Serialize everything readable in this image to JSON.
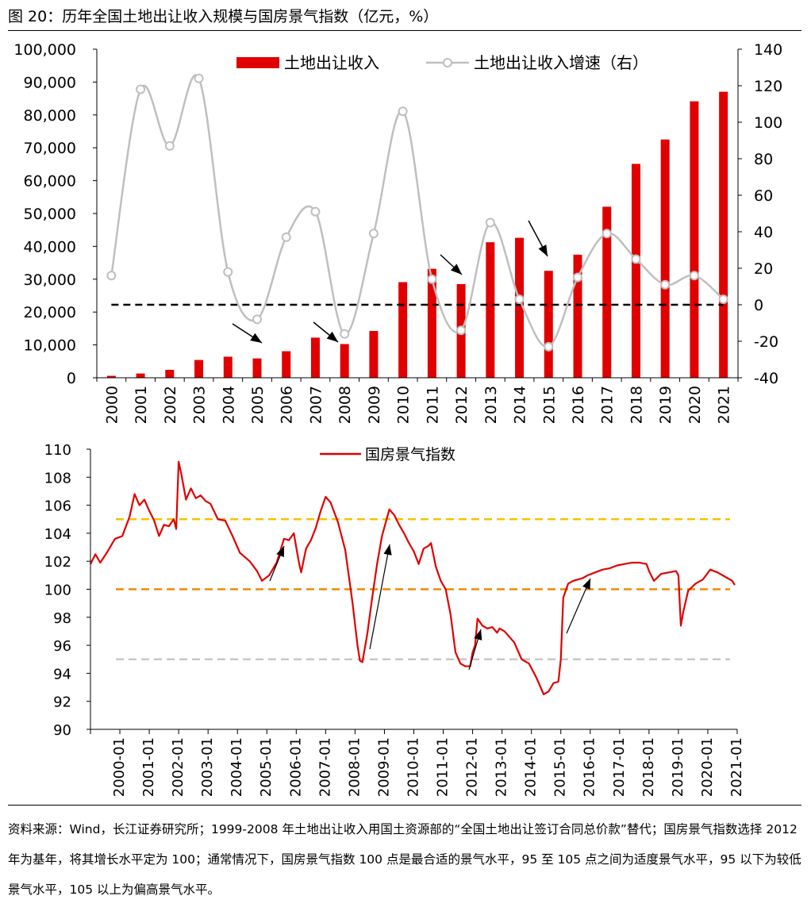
{
  "title": "图 20：历年全国土地出让收入规模与国房景气指数（亿元，%）",
  "source_note": "资料来源：Wind，长江证券研究所；1999-2008 年土地出让收入用国土资源部的“全国土地出让签订合同总价款”替代；国房景气指数选择 2012 年为基年，将其增长水平定为 100；通常情况下，国房景气指数 100 点是最合适的景气水平，95 至 105 点之间为适度景气水平，95 以下为较低景气水平，105 以上为偏高景气水平。",
  "colors": {
    "bar": "#e00000",
    "growth_line": "#bfbfbf",
    "index_line": "#e00000",
    "ref_105": "#f5c400",
    "ref_100": "#f08a00",
    "ref_95": "#c8c8c8"
  },
  "chart_data": [
    {
      "type": "bar",
      "categories": [
        "2000",
        "2001",
        "2002",
        "2003",
        "2004",
        "2005",
        "2006",
        "2007",
        "2008",
        "2009",
        "2010",
        "2011",
        "2012",
        "2013",
        "2014",
        "2015",
        "2016",
        "2017",
        "2018",
        "2019",
        "2020",
        "2021"
      ],
      "series": [
        {
          "name": "土地出让收入",
          "axis": "left",
          "kind": "bar",
          "values": [
            596,
            1296,
            2417,
            5421,
            6412,
            5884,
            8078,
            12217,
            10260,
            14240,
            29110,
            33166,
            28517,
            41250,
            42606,
            32547,
            37457,
            52059,
            65096,
            72517,
            84142,
            87051
          ]
        },
        {
          "name": "土地出让收入增速（右）",
          "axis": "right",
          "kind": "line",
          "values": [
            16,
            118,
            87,
            124,
            18,
            -8,
            37,
            51,
            -16,
            39,
            106,
            14,
            -14,
            45,
            3,
            -23,
            15,
            39,
            25,
            11,
            16,
            3
          ]
        }
      ],
      "ylim": [
        0,
        100000
      ],
      "yticks": [
        "0",
        "10,000",
        "20,000",
        "30,000",
        "40,000",
        "50,000",
        "60,000",
        "70,000",
        "80,000",
        "90,000",
        "100,000"
      ],
      "y2lim": [
        -40,
        140
      ],
      "y2ticks": [
        "-40",
        "-20",
        "0",
        "20",
        "40",
        "60",
        "80",
        "100",
        "120",
        "140"
      ],
      "reference_line_right": 0,
      "legend": "top-center",
      "annotations": [
        "arrow to 2005",
        "arrow to 2008",
        "arrow to 2012",
        "arrow to 2015"
      ]
    },
    {
      "type": "line",
      "x_ticks": [
        "2000-01",
        "2001-01",
        "2002-01",
        "2003-01",
        "2004-01",
        "2005-01",
        "2006-01",
        "2007-01",
        "2008-01",
        "2009-01",
        "2010-01",
        "2011-01",
        "2012-01",
        "2013-01",
        "2014-01",
        "2015-01",
        "2016-01",
        "2017-01",
        "2018-01",
        "2019-01",
        "2020-01",
        "2021-01"
      ],
      "series": [
        {
          "name": "国房景气指数",
          "points": [
            [
              "2000-01",
              101.8
            ],
            [
              "2000-03",
              102.5
            ],
            [
              "2000-05",
              101.9
            ],
            [
              "2000-08",
              102.7
            ],
            [
              "2000-11",
              103.6
            ],
            [
              "2001-02",
              103.8
            ],
            [
              "2001-05",
              105.2
            ],
            [
              "2001-07",
              106.8
            ],
            [
              "2001-09",
              106.0
            ],
            [
              "2001-11",
              106.4
            ],
            [
              "2002-01",
              105.6
            ],
            [
              "2002-03",
              104.9
            ],
            [
              "2002-05",
              103.8
            ],
            [
              "2002-07",
              104.6
            ],
            [
              "2002-09",
              104.5
            ],
            [
              "2002-11",
              105.0
            ],
            [
              "2002-12",
              104.3
            ],
            [
              "2003-01",
              109.1
            ],
            [
              "2003-02",
              108.3
            ],
            [
              "2003-04",
              106.4
            ],
            [
              "2003-06",
              107.2
            ],
            [
              "2003-08",
              106.5
            ],
            [
              "2003-10",
              106.7
            ],
            [
              "2003-12",
              106.3
            ],
            [
              "2004-02",
              106.1
            ],
            [
              "2004-05",
              105.0
            ],
            [
              "2004-08",
              104.9
            ],
            [
              "2004-11",
              103.8
            ],
            [
              "2005-02",
              102.6
            ],
            [
              "2005-06",
              102.0
            ],
            [
              "2005-09",
              101.3
            ],
            [
              "2005-11",
              100.6
            ],
            [
              "2006-02",
              101.0
            ],
            [
              "2006-05",
              101.9
            ],
            [
              "2006-08",
              103.6
            ],
            [
              "2006-10",
              103.5
            ],
            [
              "2006-12",
              104.0
            ],
            [
              "2007-02",
              102.0
            ],
            [
              "2007-03",
              101.2
            ],
            [
              "2007-05",
              102.9
            ],
            [
              "2007-07",
              103.5
            ],
            [
              "2007-09",
              104.4
            ],
            [
              "2007-11",
              105.6
            ],
            [
              "2008-01",
              106.6
            ],
            [
              "2008-03",
              106.2
            ],
            [
              "2008-06",
              104.8
            ],
            [
              "2008-09",
              102.8
            ],
            [
              "2008-12",
              99.0
            ],
            [
              "2009-02",
              96.0
            ],
            [
              "2009-03",
              94.9
            ],
            [
              "2009-04",
              94.8
            ],
            [
              "2009-06",
              96.8
            ],
            [
              "2009-08",
              99.4
            ],
            [
              "2009-10",
              101.8
            ],
            [
              "2009-12",
              103.8
            ],
            [
              "2010-03",
              105.7
            ],
            [
              "2010-05",
              105.3
            ],
            [
              "2010-07",
              104.6
            ],
            [
              "2010-09",
              104.0
            ],
            [
              "2010-11",
              103.3
            ],
            [
              "2011-01",
              102.7
            ],
            [
              "2011-03",
              101.8
            ],
            [
              "2011-05",
              102.9
            ],
            [
              "2011-07",
              103.1
            ],
            [
              "2011-08",
              103.3
            ],
            [
              "2011-10",
              101.6
            ],
            [
              "2011-12",
              100.6
            ],
            [
              "2012-02",
              100.0
            ],
            [
              "2012-04",
              98.2
            ],
            [
              "2012-06",
              95.5
            ],
            [
              "2012-08",
              94.7
            ],
            [
              "2012-10",
              94.5
            ],
            [
              "2012-12",
              94.5
            ],
            [
              "2013-01",
              95.5
            ],
            [
              "2013-02",
              96.0
            ],
            [
              "2013-03",
              97.9
            ],
            [
              "2013-05",
              97.4
            ],
            [
              "2013-07",
              97.2
            ],
            [
              "2013-09",
              97.3
            ],
            [
              "2013-11",
              96.9
            ],
            [
              "2013-12",
              97.2
            ],
            [
              "2014-02",
              97.0
            ],
            [
              "2014-04",
              96.6
            ],
            [
              "2014-06",
              96.2
            ],
            [
              "2014-09",
              95.0
            ],
            [
              "2014-12",
              94.7
            ],
            [
              "2015-03",
              93.7
            ],
            [
              "2015-06",
              92.5
            ],
            [
              "2015-08",
              92.7
            ],
            [
              "2015-10",
              93.3
            ],
            [
              "2015-12",
              93.4
            ],
            [
              "2016-01",
              95.0
            ],
            [
              "2016-02",
              99.4
            ],
            [
              "2016-04",
              100.4
            ],
            [
              "2016-06",
              100.6
            ],
            [
              "2016-08",
              100.7
            ],
            [
              "2016-10",
              100.8
            ],
            [
              "2016-12",
              101.0
            ],
            [
              "2017-03",
              101.2
            ],
            [
              "2017-06",
              101.4
            ],
            [
              "2017-09",
              101.5
            ],
            [
              "2017-12",
              101.7
            ],
            [
              "2018-03",
              101.8
            ],
            [
              "2018-06",
              101.9
            ],
            [
              "2018-09",
              101.9
            ],
            [
              "2018-12",
              101.8
            ],
            [
              "2019-01",
              101.3
            ],
            [
              "2019-03",
              100.6
            ],
            [
              "2019-06",
              101.1
            ],
            [
              "2019-09",
              101.2
            ],
            [
              "2019-12",
              101.3
            ],
            [
              "2020-01",
              101.0
            ],
            [
              "2020-02",
              97.4
            ],
            [
              "2020-03",
              98.4
            ],
            [
              "2020-05",
              99.9
            ],
            [
              "2020-08",
              100.4
            ],
            [
              "2020-11",
              100.7
            ],
            [
              "2021-02",
              101.4
            ],
            [
              "2021-05",
              101.2
            ],
            [
              "2021-08",
              100.9
            ],
            [
              "2021-11",
              100.6
            ],
            [
              "2021-12",
              100.3
            ]
          ]
        }
      ],
      "ylim": [
        90,
        110
      ],
      "yticks": [
        "90",
        "92",
        "94",
        "96",
        "98",
        "100",
        "102",
        "104",
        "106",
        "108",
        "110"
      ],
      "reference_lines": [
        105,
        100,
        95
      ],
      "legend": "top-center",
      "annotations": [
        "arrow 2006",
        "arrow 2009-2010",
        "arrow 2013",
        "arrow 2016"
      ]
    }
  ]
}
